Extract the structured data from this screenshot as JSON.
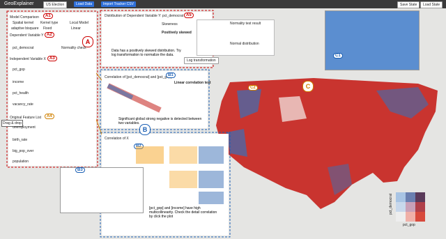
{
  "toolbar": {
    "title": "GeoExplainer",
    "buttons": [
      "US Election",
      "Load Data",
      "Import Tracker CSV"
    ],
    "right_buttons": [
      "Save State",
      "Load State"
    ]
  },
  "panel_a": {
    "label": "A",
    "model": {
      "tag": "A1",
      "title": "Model Comparison",
      "headers": [
        "Spatial kernel",
        "Kernel type",
        "Local Model"
      ],
      "values": [
        "adaptive bisquare",
        "Fixed",
        "Linear"
      ]
    },
    "dependent": {
      "tag": "A2",
      "title": "Dependent Variable Y",
      "variable": "pct_democrat",
      "action": "Normality check"
    },
    "independent": {
      "tag": "A3",
      "title": "Independent Variable X",
      "variables": [
        "pct_gop",
        "income",
        "pct_health",
        "vacancy_rate"
      ]
    },
    "features": {
      "tag": "A4",
      "title": "Original Feature List",
      "variables": [
        "unemployment",
        "birth_rate",
        "big_pop_over",
        "population"
      ]
    },
    "drag": "Drag & drop"
  },
  "distribution": {
    "tag": "A5",
    "title": "Distribution of Dependent Variable Y: pct_democrat",
    "test_title": "Normality test result",
    "skewness": "Skewness",
    "result": "Positively skewed",
    "normal": "Normal distribution",
    "message": "Data has a positively skewed distribution. Try log transformation to normalize the data.",
    "button": "Log transformation"
  },
  "correlation": {
    "tag": "B1",
    "title": "Correlation of [pct_democrat] and [pct_gop]",
    "test_title": "Linear correlation test",
    "message": "Significant global strong negative is detected between two variables."
  },
  "multicollinearity": {
    "label": "B",
    "title": "Correlation of X",
    "tags": [
      "B2",
      "B3"
    ],
    "message": "[pct_gop] and [income] have high multicollinearity. Check the detail correlation by click the plot"
  },
  "map": {
    "label": "C",
    "tags": [
      "C1",
      "C2"
    ],
    "legend_x": "pct_gop",
    "legend_y": "pct_democrat"
  }
}
